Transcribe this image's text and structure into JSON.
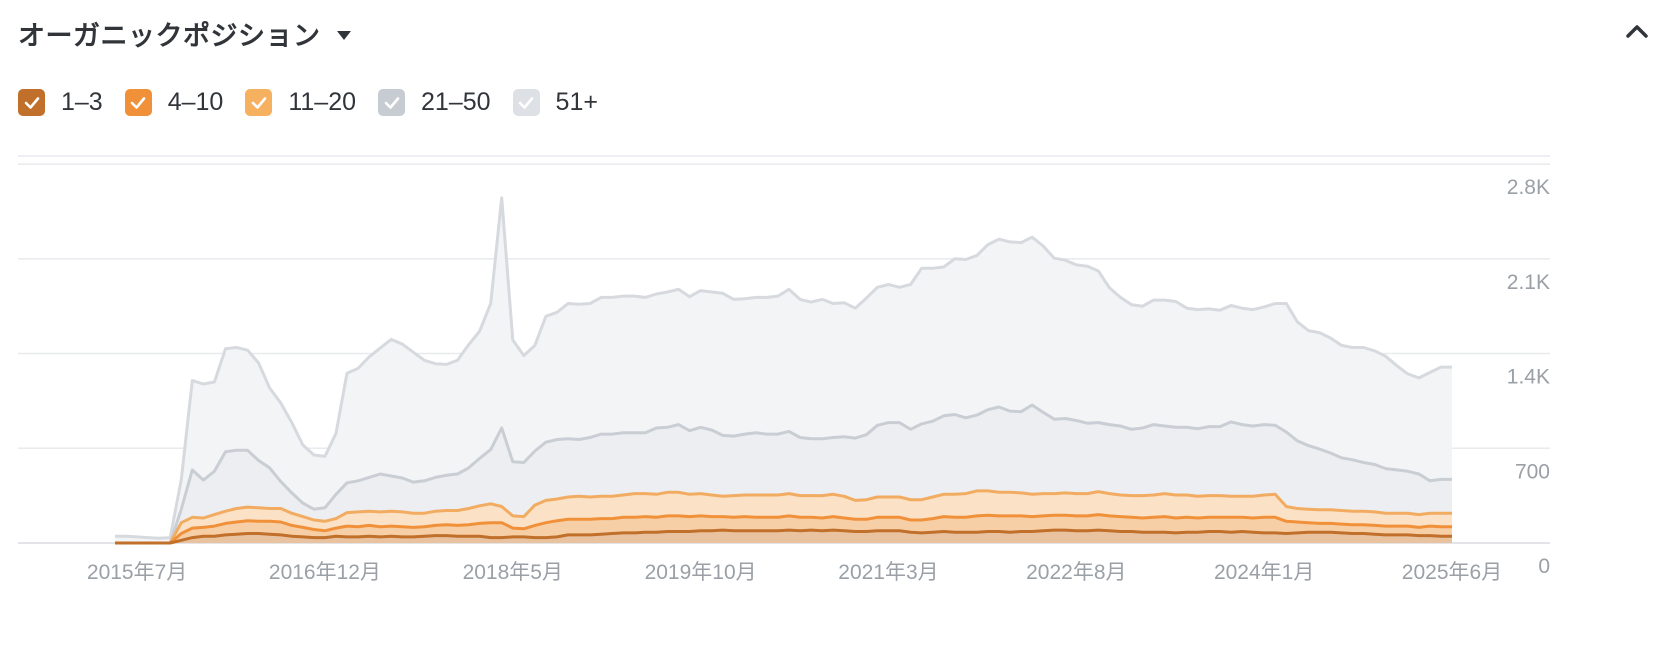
{
  "header": {
    "title": "オーガニックポジション",
    "dropdown_icon": "caret-down-icon",
    "collapse_icon": "chevron-up-icon"
  },
  "legend": [
    {
      "label": "1–3",
      "checked": true,
      "color": "#c0702a"
    },
    {
      "label": "4–10",
      "checked": true,
      "color": "#f0913a"
    },
    {
      "label": "11–20",
      "checked": true,
      "color": "#f5b060"
    },
    {
      "label": "21–50",
      "checked": true,
      "color": "#c7ccd3"
    },
    {
      "label": "51+",
      "checked": true,
      "color": "#dde0e5"
    }
  ],
  "chart_data": {
    "type": "area",
    "stacked": true,
    "y_ticks": [
      "0",
      "700",
      "1.4K",
      "2.1K",
      "2.8K"
    ],
    "y_tick_values": [
      0,
      700,
      1400,
      2100,
      2800
    ],
    "ylim": [
      0,
      2800
    ],
    "x_ticks": [
      "2015年7月",
      "2016年12月",
      "2018年5月",
      "2019年10月",
      "2021年3月",
      "2022年8月",
      "2024年1月",
      "2025年6月"
    ],
    "x_tick_index": [
      2,
      19,
      36,
      53,
      70,
      87,
      104,
      121
    ],
    "grid": true,
    "legend_position": "top-left",
    "series": [
      {
        "name": "1–3",
        "color": "#c0702a",
        "values": [
          0,
          0,
          0,
          0,
          0,
          0,
          20,
          40,
          50,
          50,
          60,
          65,
          70,
          70,
          65,
          60,
          50,
          45,
          40,
          40,
          50,
          45,
          45,
          50,
          45,
          50,
          45,
          45,
          50,
          55,
          55,
          50,
          50,
          50,
          40,
          40,
          45,
          45,
          40,
          40,
          45,
          60,
          60,
          60,
          65,
          70,
          75,
          75,
          80,
          80,
          85,
          85,
          85,
          90,
          90,
          95,
          90,
          90,
          90,
          90,
          90,
          95,
          90,
          95,
          90,
          95,
          90,
          85,
          85,
          90,
          90,
          90,
          80,
          75,
          80,
          85,
          80,
          80,
          80,
          85,
          85,
          80,
          85,
          85,
          90,
          95,
          95,
          90,
          90,
          95,
          90,
          85,
          85,
          80,
          80,
          80,
          75,
          80,
          80,
          85,
          85,
          80,
          85,
          80,
          75,
          75,
          70,
          75,
          80,
          80,
          80,
          75,
          70,
          70,
          65,
          60,
          60,
          60,
          55,
          55,
          50,
          50
        ]
      },
      {
        "name": "4–10",
        "color": "#f0913a",
        "values": [
          0,
          0,
          0,
          0,
          0,
          0,
          50,
          70,
          65,
          75,
          85,
          90,
          95,
          90,
          95,
          95,
          80,
          70,
          60,
          50,
          60,
          80,
          75,
          80,
          75,
          75,
          75,
          70,
          70,
          75,
          80,
          80,
          85,
          95,
          110,
          110,
          65,
          60,
          90,
          110,
          120,
          115,
          115,
          115,
          115,
          110,
          115,
          115,
          115,
          110,
          115,
          115,
          110,
          110,
          105,
          100,
          100,
          105,
          100,
          100,
          100,
          105,
          100,
          95,
          95,
          100,
          95,
          90,
          90,
          100,
          100,
          100,
          90,
          95,
          100,
          110,
          110,
          110,
          120,
          120,
          115,
          120,
          115,
          110,
          110,
          110,
          110,
          110,
          110,
          115,
          110,
          110,
          105,
          105,
          110,
          115,
          110,
          110,
          105,
          105,
          105,
          110,
          105,
          105,
          115,
          115,
          90,
          80,
          70,
          65,
          65,
          65,
          65,
          65,
          65,
          65,
          65,
          65,
          60,
          70,
          70,
          70
        ]
      },
      {
        "name": "11–20",
        "color": "#f5b060",
        "values": [
          0,
          0,
          0,
          0,
          0,
          0,
          80,
          80,
          70,
          85,
          90,
          100,
          100,
          100,
          95,
          100,
          90,
          80,
          70,
          70,
          70,
          100,
          110,
          105,
          110,
          110,
          110,
          105,
          100,
          105,
          105,
          110,
          120,
          130,
          140,
          120,
          90,
          90,
          150,
          165,
          160,
          165,
          170,
          165,
          165,
          165,
          165,
          175,
          170,
          170,
          175,
          175,
          165,
          165,
          160,
          150,
          160,
          160,
          165,
          165,
          165,
          165,
          160,
          160,
          165,
          165,
          160,
          140,
          145,
          150,
          150,
          150,
          150,
          150,
          160,
          165,
          170,
          175,
          185,
          180,
          175,
          175,
          170,
          165,
          165,
          160,
          165,
          165,
          165,
          170,
          165,
          160,
          160,
          165,
          165,
          170,
          170,
          165,
          160,
          160,
          160,
          155,
          155,
          160,
          165,
          170,
          110,
          100,
          100,
          100,
          100,
          100,
          100,
          100,
          100,
          95,
          95,
          95,
          95,
          95,
          100,
          100
        ]
      },
      {
        "name": "21–50",
        "color": "#c7ccd3",
        "values": [
          0,
          0,
          0,
          0,
          0,
          0,
          100,
          350,
          280,
          320,
          440,
          430,
          420,
          350,
          300,
          200,
          150,
          100,
          80,
          100,
          180,
          220,
          230,
          250,
          280,
          260,
          250,
          230,
          240,
          250,
          260,
          270,
          300,
          350,
          400,
          580,
          400,
          400,
          400,
          430,
          440,
          430,
          420,
          440,
          460,
          460,
          460,
          450,
          450,
          490,
          480,
          500,
          470,
          490,
          480,
          450,
          440,
          450,
          460,
          450,
          450,
          460,
          430,
          420,
          420,
          420,
          440,
          460,
          480,
          530,
          550,
          550,
          520,
          560,
          560,
          580,
          590,
          560,
          560,
          600,
          630,
          600,
          600,
          660,
          600,
          550,
          550,
          540,
          520,
          510,
          510,
          510,
          490,
          500,
          520,
          500,
          500,
          500,
          500,
          510,
          510,
          550,
          530,
          520,
          520,
          510,
          550,
          500,
          470,
          450,
          420,
          390,
          380,
          360,
          350,
          330,
          320,
          310,
          300,
          240,
          250,
          250
        ]
      },
      {
        "name": "51+",
        "color": "#dde0e5",
        "values": [
          50,
          50,
          45,
          40,
          35,
          40,
          220,
          660,
          710,
          660,
          760,
          760,
          740,
          720,
          590,
          580,
          520,
          430,
          400,
          380,
          450,
          810,
          830,
          890,
          930,
          1010,
          990,
          960,
          890,
          840,
          820,
          840,
          910,
          940,
          1080,
          1700,
          900,
          790,
          780,
          930,
          940,
          1000,
          1000,
          990,
          1010,
          1010,
          1010,
          1010,
          1000,
          990,
          1000,
          1000,
          990,
          1010,
          1020,
          1050,
          1010,
          1000,
          1000,
          1010,
          1020,
          1050,
          1020,
          1010,
          1030,
          990,
          990,
          960,
          1010,
          1020,
          1020,
          1000,
          1070,
          1150,
          1130,
          1100,
          1150,
          1170,
          1180,
          1220,
          1240,
          1250,
          1250,
          1240,
          1230,
          1190,
          1170,
          1150,
          1160,
          1120,
          1010,
          950,
          920,
          900,
          920,
          930,
          930,
          880,
          880,
          870,
          860,
          860,
          860,
          860,
          870,
          900,
          950,
          880,
          850,
          860,
          850,
          830,
          830,
          850,
          840,
          830,
          770,
          720,
          710,
          800,
          830,
          830
        ]
      }
    ]
  }
}
